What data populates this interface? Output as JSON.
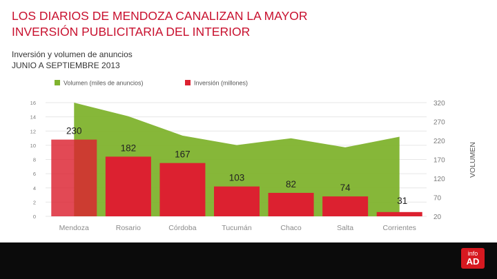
{
  "header": {
    "title_line1": "LOS DIARIOS DE MENDOZA CANALIZAN LA MAYOR",
    "title_line2": "INVERSIÓN PUBLICITARIA DEL INTERIOR",
    "subtitle_line1": "Inversión y volumen de anuncios",
    "subtitle_line2": "JUNIO A SEPTIEMBRE 2013"
  },
  "logo": {
    "line1": "info",
    "line2": "AD"
  },
  "colors": {
    "title": "#c8102e",
    "bar": "#dc2130",
    "area": "#7fb32e",
    "footer": "#0b0b0b"
  },
  "chart_data": {
    "type": "bar",
    "categories": [
      "Mendoza",
      "Rosario",
      "Córdoba",
      "Tucumán",
      "Chaco",
      "Salta",
      "Corrientes"
    ],
    "series": [
      {
        "name": "Volumen (miles de anuncios)",
        "type": "area",
        "axis": "right",
        "values": [
          320,
          284,
          233,
          208,
          226,
          202,
          230
        ]
      },
      {
        "name": "Inversión (millones)",
        "type": "bar",
        "axis": "left",
        "values": [
          10.8,
          8.4,
          7.5,
          4.2,
          3.3,
          2.8,
          0.6
        ]
      }
    ],
    "data_labels": [
      "230",
      "182",
      "167",
      "103",
      "82",
      "74",
      "31"
    ],
    "left_axis": {
      "ticks": [
        "0",
        "2",
        "4",
        "6",
        "8",
        "10",
        "12",
        "14",
        "16"
      ],
      "ylim": [
        0,
        16
      ]
    },
    "right_axis": {
      "label": "VOLUMEN",
      "ticks": [
        "20",
        "70",
        "120",
        "170",
        "220",
        "270",
        "320"
      ],
      "ylim": [
        20,
        320
      ]
    },
    "legend": "top"
  }
}
